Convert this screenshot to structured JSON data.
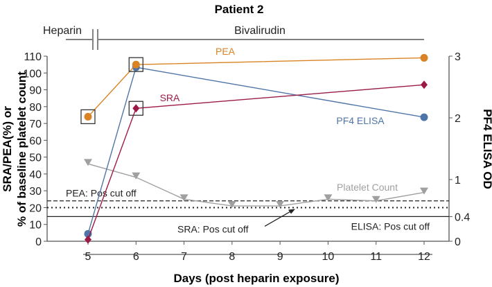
{
  "chart_data": {
    "type": "line",
    "title": "Patient 2",
    "xlabel": "Days (post heparin exposure)",
    "ylabel_left": [
      "SRA/PEA(%) or",
      "% of baseline platelet count"
    ],
    "ylabel_right": "PF4 ELISA OD",
    "x_ticks": [
      5,
      6,
      7,
      8,
      9,
      10,
      11,
      12
    ],
    "y_left_ticks": [
      0,
      10,
      20,
      30,
      40,
      50,
      60,
      70,
      80,
      90,
      100,
      110
    ],
    "y_right_ticks": [
      0,
      0.4,
      1,
      2,
      3
    ],
    "ylim_left": [
      0,
      110
    ],
    "ylim_right": [
      0,
      3
    ],
    "xlim": [
      4.65,
      13
    ],
    "treatment": {
      "heparin": "Heparin",
      "bivalirudin": "Bivalirudin"
    },
    "series": [
      {
        "name": "PEA",
        "axis": "left",
        "color": "#d98324",
        "marker": "circle",
        "x": [
          5,
          6,
          12
        ],
        "y": [
          74,
          105,
          109
        ]
      },
      {
        "name": "SRA",
        "axis": "left",
        "color": "#9b1b45",
        "marker": "diamond",
        "x": [
          5,
          6,
          12
        ],
        "y": [
          1,
          79,
          93
        ]
      },
      {
        "name": "PF4 ELISA",
        "axis": "right",
        "color": "#4f75a8",
        "marker": "circle",
        "x": [
          5,
          6,
          12
        ],
        "y": [
          0.12,
          2.82,
          2.01
        ]
      },
      {
        "name": "Platelet Count",
        "axis": "left",
        "color": "#a0a0a0",
        "marker": "triangle-down",
        "x": [
          5,
          6,
          7,
          8,
          9,
          10,
          11,
          12
        ],
        "y": [
          46,
          38,
          25,
          21,
          21,
          25,
          24,
          29
        ]
      }
    ],
    "reference_lines": [
      {
        "label": "PEA: Pos cut off",
        "axis": "left",
        "value": 24,
        "style": "dashed"
      },
      {
        "label": "SRA: Pos cut off",
        "axis": "left",
        "value": 20,
        "style": "dotted"
      },
      {
        "label": "ELISA: Pos cut off",
        "axis": "right",
        "value": 0.4,
        "style": "solid"
      }
    ],
    "highlighted_points": [
      {
        "series": "PEA",
        "x": 5
      },
      {
        "series": "PEA",
        "x": 6
      },
      {
        "series": "SRA",
        "x": 6
      }
    ]
  }
}
